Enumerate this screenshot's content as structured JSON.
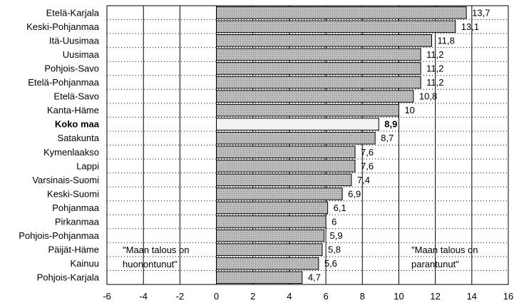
{
  "chart_data": {
    "type": "bar",
    "orientation": "horizontal",
    "categories": [
      "Etelä-Karjala",
      "Keski-Pohjanmaa",
      "Itä-Uusimaa",
      "Uusimaa",
      "Pohjois-Savo",
      "Etelä-Pohjanmaa",
      "Etelä-Savo",
      "Kanta-Häme",
      "Koko maa",
      "Satakunta",
      "Kymenlaakso",
      "Lappi",
      "Varsinais-Suomi",
      "Keski-Suomi",
      "Pohjanmaa",
      "Pirkanmaa",
      "Pohjois-Pohjanmaa",
      "Päijät-Häme",
      "Kainuu",
      "Pohjois-Karjala"
    ],
    "values": [
      13.7,
      13.1,
      11.8,
      11.2,
      11.2,
      11.2,
      10.8,
      10,
      8.9,
      8.7,
      7.6,
      7.6,
      7.4,
      6.9,
      6.1,
      6,
      5.9,
      5.8,
      5.6,
      4.7
    ],
    "value_labels": [
      "13,7",
      "13,1",
      "11,8",
      "11,2",
      "11,2",
      "11,2",
      "10,8",
      "10",
      "8,9",
      "8,7",
      "7,6",
      "7,6",
      "7,4",
      "6,9",
      "6,1",
      "6",
      "5,9",
      "5,8",
      "5,6",
      "4,7"
    ],
    "highlight_category": "Koko maa",
    "xlim": [
      -6,
      16
    ],
    "xticks": [
      -6,
      -4,
      -2,
      0,
      2,
      4,
      6,
      8,
      10,
      12,
      14,
      16
    ],
    "grid": {
      "vertical": true,
      "horizontal_dotted": true
    },
    "annotations": {
      "left": [
        "\"Maan talous on",
        "huonontunut\""
      ],
      "right": [
        "\"Maan talous on",
        "parantunut\""
      ]
    },
    "colors": {
      "bar_fill": "#b8b8b8",
      "highlight_fill": "#f2f2f2",
      "bar_stroke": "#000000"
    }
  }
}
